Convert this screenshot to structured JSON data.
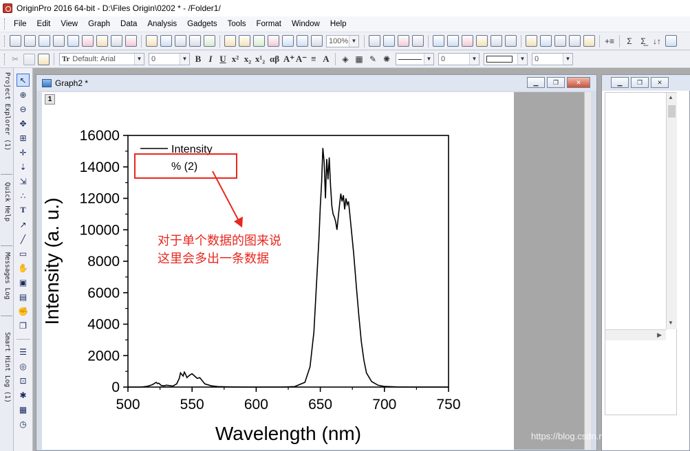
{
  "app": {
    "title": "OriginPro 2016 64-bit - D:\\Files Origin\\0202 * - /Folder1/"
  },
  "menu": [
    "File",
    "Edit",
    "View",
    "Graph",
    "Data",
    "Analysis",
    "Gadgets",
    "Tools",
    "Format",
    "Window",
    "Help"
  ],
  "toolbar": {
    "zoom_value": "100%",
    "font_value": "Default: Arial",
    "font_size_value": "0",
    "line_width_value": "0",
    "border_width_value": "0"
  },
  "dock_tabs": [
    "Project Explorer (1)",
    "Quick Help",
    "Messages Log",
    "Smart Hint Log (1)"
  ],
  "graph_window": {
    "title": "Graph2 *",
    "layer_label": "1"
  },
  "annotation": {
    "line1": "对于单个数据的图来说",
    "line2": "这里会多出一条数据",
    "color": "#e8281e"
  },
  "watermark": "https://blog.csdn.net/XD_Yangf",
  "chart_data": {
    "type": "line",
    "xlabel": "Wavelength (nm)",
    "ylabel": "Intensity (a. u.)",
    "xlim": [
      500,
      750
    ],
    "ylim": [
      0,
      16000
    ],
    "xticks": [
      500,
      550,
      600,
      650,
      700,
      750
    ],
    "yticks": [
      0,
      2000,
      4000,
      6000,
      8000,
      10000,
      12000,
      14000,
      16000
    ],
    "grid": false,
    "legend": {
      "position": "top-left",
      "entries": [
        "Intensity",
        "% (2)"
      ]
    },
    "series": [
      {
        "name": "Intensity",
        "color": "#000000",
        "x": [
          500,
          510,
          515,
          519,
          522,
          523,
          524,
          526,
          528,
          530,
          533,
          535,
          538,
          540,
          541,
          543,
          544,
          545,
          546,
          548,
          550,
          552,
          554,
          556,
          558,
          560,
          565,
          570,
          580,
          590,
          600,
          610,
          620,
          630,
          638,
          642,
          645,
          647,
          649,
          650,
          651,
          652,
          653,
          654,
          655,
          656,
          657,
          658,
          659,
          660,
          661,
          662,
          663,
          664,
          665,
          666,
          667,
          668,
          669,
          670,
          671,
          672,
          673,
          674,
          676,
          678,
          680,
          682,
          684,
          686,
          690,
          695,
          700,
          710,
          720,
          730,
          740,
          750
        ],
        "y": [
          0,
          0,
          50,
          150,
          300,
          220,
          250,
          100,
          80,
          120,
          90,
          60,
          200,
          550,
          900,
          700,
          950,
          800,
          600,
          750,
          850,
          700,
          550,
          600,
          400,
          200,
          80,
          30,
          10,
          0,
          0,
          0,
          0,
          30,
          300,
          1300,
          3500,
          6500,
          9500,
          11500,
          13000,
          15200,
          14300,
          12000,
          14500,
          13200,
          14600,
          12800,
          11500,
          11000,
          10800,
          10500,
          10000,
          10800,
          11600,
          12300,
          11800,
          12200,
          11300,
          12000,
          11600,
          11800,
          11000,
          10200,
          8500,
          6500,
          4600,
          2900,
          1700,
          900,
          350,
          120,
          40,
          10,
          0,
          0,
          0,
          0
        ]
      }
    ]
  }
}
